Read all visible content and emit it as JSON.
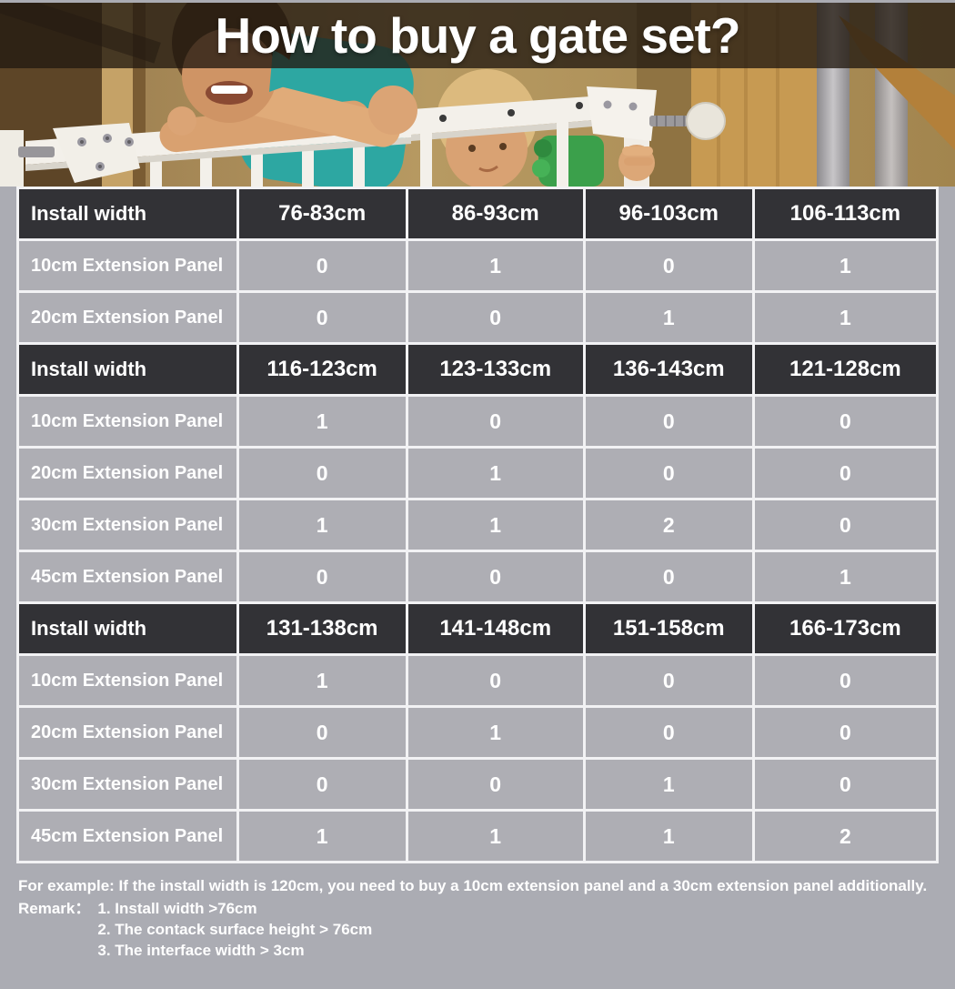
{
  "title": "How to buy a gate set?",
  "table": {
    "sections": [
      {
        "header": {
          "label": "Install width",
          "widths": [
            "76-83cm",
            "86-93cm",
            "96-103cm",
            "106-113cm"
          ]
        },
        "rows": [
          {
            "label": "10cm Extension Panel",
            "values": [
              "0",
              "1",
              "0",
              "1"
            ]
          },
          {
            "label": "20cm Extension Panel",
            "values": [
              "0",
              "0",
              "1",
              "1"
            ]
          }
        ]
      },
      {
        "header": {
          "label": "Install width",
          "widths": [
            "116-123cm",
            "123-133cm",
            "136-143cm",
            "121-128cm"
          ]
        },
        "rows": [
          {
            "label": "10cm Extension Panel",
            "values": [
              "1",
              "0",
              "0",
              "0"
            ]
          },
          {
            "label": "20cm Extension Panel",
            "values": [
              "0",
              "1",
              "0",
              "0"
            ]
          },
          {
            "label": "30cm Extension Panel",
            "values": [
              "1",
              "1",
              "2",
              "0"
            ]
          },
          {
            "label": "45cm Extension Panel",
            "values": [
              "0",
              "0",
              "0",
              "1"
            ]
          }
        ]
      },
      {
        "header": {
          "label": "Install width",
          "widths": [
            "131-138cm",
            "141-148cm",
            "151-158cm",
            "166-173cm"
          ]
        },
        "rows": [
          {
            "label": "10cm Extension Panel",
            "values": [
              "1",
              "0",
              "0",
              "0"
            ]
          },
          {
            "label": "20cm Extension Panel",
            "values": [
              "0",
              "1",
              "0",
              "0"
            ]
          },
          {
            "label": "30cm Extension Panel",
            "values": [
              "0",
              "0",
              "1",
              "0"
            ]
          },
          {
            "label": "45cm Extension Panel",
            "values": [
              "1",
              "1",
              "1",
              "2"
            ]
          }
        ]
      }
    ]
  },
  "footer": {
    "example": "For example: If the install width is 120cm, you need to buy a 10cm extension panel and a 30cm extension panel additionally.",
    "remark_label": "Remark：",
    "remarks": [
      "1. Install width >76cm",
      "2. The contack surface height > 76cm",
      "3. The interface width > 3cm"
    ]
  },
  "colors": {
    "page_bg": "#abacb3",
    "table_header_bg": "#323236",
    "table_cell_bg": "#aeaeb4",
    "table_grid": "#f2f2f4",
    "text_white": "#ffffff",
    "title_overlay": "rgba(34,26,17,0.78)",
    "wall_tan": "#b3955c",
    "wood_post": "#c79a52",
    "gate_white": "#f3f0ea",
    "shirt_teal": "#2da7a2",
    "shirt_green": "#3ba04b",
    "skin": "#d9a170",
    "hair_brown": "#54381f",
    "hair_blond": "#dcba7e"
  }
}
